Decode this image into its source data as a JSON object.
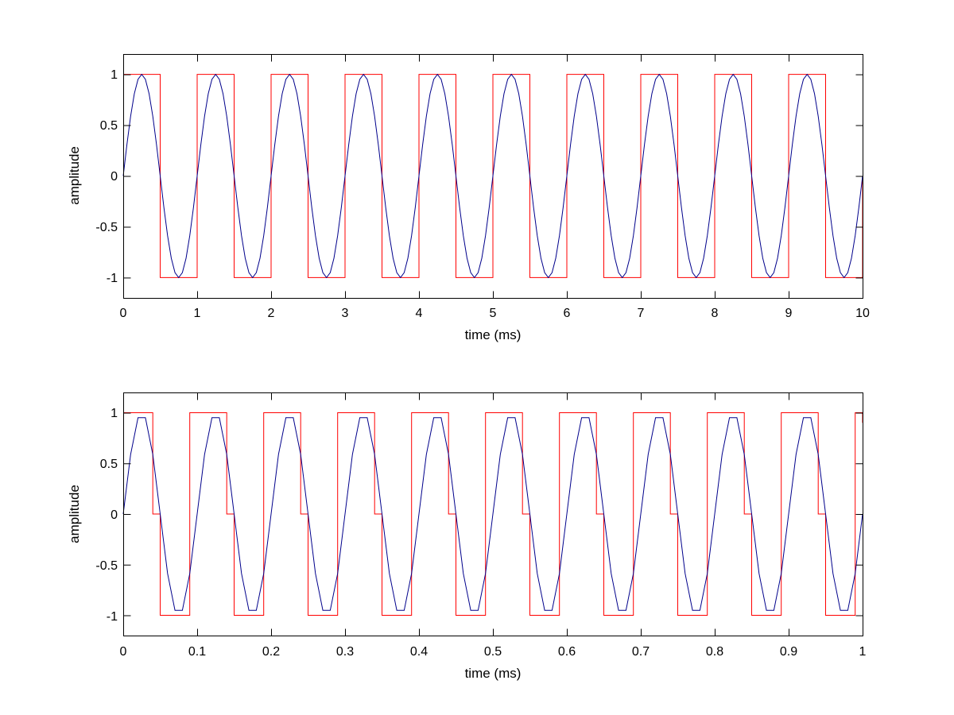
{
  "chart_data": [
    {
      "type": "line",
      "xlabel": "time (ms)",
      "ylabel": "amplitude",
      "xlim": [
        0,
        10
      ],
      "ylim": [
        -1.2,
        1.2
      ],
      "xticks": [
        0,
        1,
        2,
        3,
        4,
        5,
        6,
        7,
        8,
        9,
        10
      ],
      "xtick_labels": [
        "0",
        "1",
        "2",
        "3",
        "4",
        "5",
        "6",
        "7",
        "8",
        "9",
        "10"
      ],
      "yticks": [
        1,
        0.5,
        0,
        -0.5,
        -1
      ],
      "ytick_labels": [
        "1",
        "0.5",
        "0",
        "-0.5",
        "-1"
      ],
      "grid": false,
      "series": [
        {
          "kind": "square",
          "color": "#ff0000",
          "period": 1,
          "x_end": 10,
          "x": [
            0,
            0.5,
            0.5,
            1,
            1,
            1.5,
            1.5,
            2,
            2,
            2.5,
            2.5,
            3,
            3,
            3.5,
            3.5,
            4,
            4,
            4.5,
            4.5,
            5,
            5,
            5.5,
            5.5,
            6,
            6,
            6.5,
            6.5,
            7,
            7,
            7.5,
            7.5,
            8,
            8,
            8.5,
            8.5,
            9,
            9,
            9.5,
            9.5,
            10,
            10
          ],
          "values": [
            1,
            1,
            -1,
            -1,
            1,
            1,
            -1,
            -1,
            1,
            1,
            -1,
            -1,
            1,
            1,
            -1,
            -1,
            1,
            1,
            -1,
            -1,
            1,
            1,
            -1,
            -1,
            1,
            1,
            -1,
            -1,
            1,
            1,
            -1,
            -1,
            1,
            1,
            -1,
            -1,
            1,
            1,
            -1,
            -1,
            0
          ]
        },
        {
          "kind": "sine",
          "color": "#00008b",
          "amplitude": 1,
          "period": 1,
          "x_end": 10,
          "sample_step": 0.05
        }
      ]
    },
    {
      "type": "line",
      "xlabel": "time (ms)",
      "ylabel": "amplitude",
      "xlim": [
        0,
        1
      ],
      "ylim": [
        -1.2,
        1.2
      ],
      "xticks": [
        0,
        0.1,
        0.2,
        0.3,
        0.4,
        0.5,
        0.6,
        0.7,
        0.8,
        0.9,
        1
      ],
      "xtick_labels": [
        "0",
        "0.1",
        "0.2",
        "0.3",
        "0.4",
        "0.5",
        "0.6",
        "0.7",
        "0.8",
        "0.9",
        "1"
      ],
      "yticks": [
        1,
        0.5,
        0,
        -0.5,
        -1
      ],
      "ytick_labels": [
        "1",
        "0.5",
        "0",
        "-0.5",
        "-1"
      ],
      "grid": false,
      "series": [
        {
          "kind": "square",
          "color": "#ff0000",
          "x": [
            0,
            0.04,
            0.04,
            0.05,
            0.05,
            0.09,
            0.09,
            0.14,
            0.14,
            0.15,
            0.15,
            0.19,
            0.19,
            0.24,
            0.24,
            0.25,
            0.25,
            0.29,
            0.29,
            0.34,
            0.34,
            0.35,
            0.35,
            0.39,
            0.39,
            0.44,
            0.44,
            0.45,
            0.45,
            0.49,
            0.49,
            0.54,
            0.54,
            0.55,
            0.55,
            0.59,
            0.59,
            0.64,
            0.64,
            0.65,
            0.65,
            0.69,
            0.69,
            0.74,
            0.74,
            0.75,
            0.75,
            0.79,
            0.79,
            0.84,
            0.84,
            0.85,
            0.85,
            0.89,
            0.89,
            0.94,
            0.94,
            0.95,
            0.95,
            0.99,
            0.99,
            1,
            1
          ],
          "values": [
            1,
            1,
            0,
            0,
            -1,
            -1,
            1,
            1,
            0,
            0,
            -1,
            -1,
            1,
            1,
            0,
            0,
            -1,
            -1,
            1,
            1,
            0,
            0,
            -1,
            -1,
            1,
            1,
            0,
            0,
            -1,
            -1,
            1,
            1,
            0,
            0,
            -1,
            -1,
            1,
            1,
            0,
            0,
            -1,
            -1,
            1,
            1,
            0,
            0,
            -1,
            -1,
            1,
            1,
            0,
            0,
            -1,
            -1,
            1,
            1,
            0,
            0,
            -1,
            -1,
            1,
            1,
            0.9
          ]
        },
        {
          "kind": "sine",
          "color": "#00008b",
          "amplitude": 1,
          "period": 0.1,
          "x_end": 1,
          "sample_step": 0.01
        }
      ]
    }
  ]
}
